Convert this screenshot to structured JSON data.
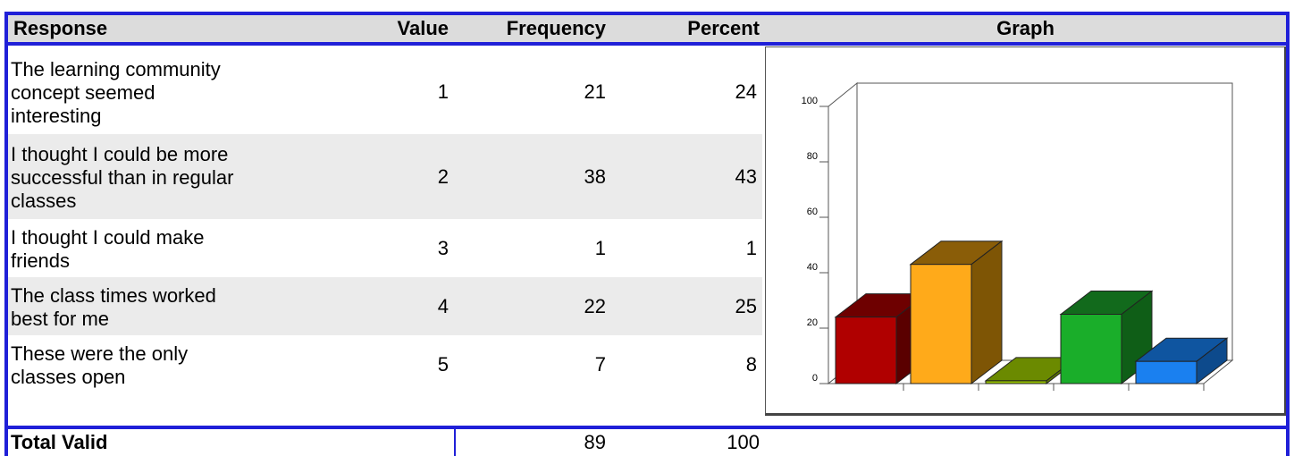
{
  "headers": {
    "response": "Response",
    "value": "Value",
    "frequency": "Frequency",
    "percent": "Percent",
    "graph": "Graph"
  },
  "rows": [
    {
      "lines": [
        "The learning community",
        "concept seemed",
        "interesting"
      ],
      "value": "1",
      "frequency": "21",
      "percent": "24"
    },
    {
      "lines": [
        "I thought I could be more",
        "successful than in regular",
        "classes"
      ],
      "value": "2",
      "frequency": "38",
      "percent": "43"
    },
    {
      "lines": [
        "I thought I could make",
        "friends"
      ],
      "value": "3",
      "frequency": "1",
      "percent": "1"
    },
    {
      "lines": [
        "The class times worked",
        "best for me"
      ],
      "value": "4",
      "frequency": "22",
      "percent": "25"
    },
    {
      "lines": [
        "These were the only",
        "classes open"
      ],
      "value": "5",
      "frequency": "7",
      "percent": "8"
    }
  ],
  "footer": {
    "label": "Total Valid",
    "frequency": "89",
    "percent": "100"
  },
  "chart_data": {
    "type": "bar",
    "categories": [
      "1",
      "2",
      "3",
      "4",
      "5"
    ],
    "values": [
      24,
      43,
      1,
      25,
      8
    ],
    "ylim": [
      0,
      100
    ],
    "yticks": [
      "0",
      "20",
      "40",
      "60",
      "80",
      "100"
    ],
    "colors": [
      "#b00000",
      "#ffaa1a",
      "#94bf00",
      "#1aae2a",
      "#1a80f0"
    ],
    "side_colors": [
      "#5a0000",
      "#7e5505",
      "#5e7a00",
      "#0f5e17",
      "#0d4a8c"
    ],
    "top_colors": [
      "#6e0000",
      "#8a5d08",
      "#6b8a00",
      "#126a1c",
      "#0f55a0"
    ],
    "title": "",
    "xlabel": "",
    "ylabel": ""
  }
}
